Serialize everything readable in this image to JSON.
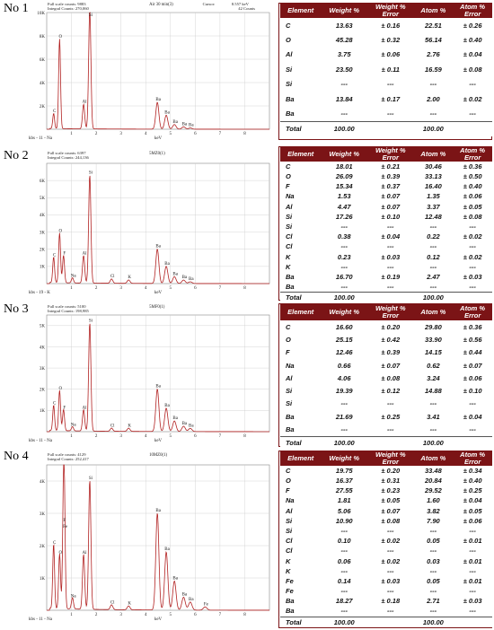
{
  "colors": {
    "header_bg": "#7b1416",
    "spectrum": "#b22222",
    "grid": "#cccccc"
  },
  "headers_full": [
    "Element",
    "Weight %",
    "Weight % Error",
    "Atom %",
    "Atom % Error"
  ],
  "headers_split": {
    "element": "Element",
    "weight": "Weight %",
    "weight_err": "Weight %",
    "weight_err2": "Error",
    "atom": "Atom %",
    "atom_err": "Atom %",
    "atom_err2": "Error"
  },
  "panels": [
    {
      "label": "No 1",
      "info_line1": "Full scale counts: 9883",
      "info_line2": "Integral Counts: 270,060",
      "sample": "Air 30 min(3)",
      "cursor": "Cursor:",
      "cursor_val": "8.557 keV",
      "cursor_counts": "42  Counts",
      "footer": "kbs - 11 - Na",
      "xaxis": "keV",
      "chart_data": {
        "type": "line",
        "ylim": [
          0,
          10000
        ],
        "xlim": [
          0,
          9
        ],
        "yticks": [
          "2K",
          "4K",
          "6K",
          "8K",
          "10K"
        ],
        "xticks": [
          "1",
          "2",
          "3",
          "4",
          "5",
          "6",
          "7",
          "8"
        ],
        "peaks": [
          {
            "label": "C",
            "x": 0.28,
            "y": 1300
          },
          {
            "label": "O",
            "x": 0.52,
            "y": 7700
          },
          {
            "label": "Al",
            "x": 1.49,
            "y": 2100
          },
          {
            "label": "Si",
            "x": 1.74,
            "y": 10300
          },
          {
            "label": "Ba",
            "x": 4.47,
            "y": 2300
          },
          {
            "label": "Ba",
            "x": 4.83,
            "y": 1200
          },
          {
            "label": "Ba",
            "x": 5.16,
            "y": 400
          },
          {
            "label": "Ba",
            "x": 5.53,
            "y": 200
          },
          {
            "label": "Ba",
            "x": 5.8,
            "y": 100
          }
        ]
      },
      "table": {
        "rows": [
          [
            "C",
            "13.63",
            "± 0.16",
            "22.51",
            "± 0.26"
          ],
          [
            "O",
            "45.28",
            "± 0.32",
            "56.14",
            "± 0.40"
          ],
          [
            "Al",
            "3.75",
            "± 0.06",
            "2.76",
            "± 0.04"
          ],
          [
            "Si",
            "23.50",
            "± 0.11",
            "16.59",
            "± 0.08"
          ],
          [
            "Si",
            "---",
            "---",
            "---",
            "---"
          ],
          [
            "Ba",
            "13.84",
            "± 0.17",
            "2.00",
            "± 0.02"
          ],
          [
            "Ba",
            "---",
            "---",
            "---",
            "---"
          ]
        ],
        "total": [
          "Total",
          "100.00",
          "",
          "100.00",
          ""
        ]
      }
    },
    {
      "label": "No 2",
      "info_line1": "Full scale counts: 6397",
      "info_line2": "Integral Counts: 244,136",
      "sample": "5MZ0(1)",
      "footer": "kbs - 19 - K",
      "xaxis": "keV",
      "chart_data": {
        "type": "line",
        "ylim": [
          0,
          7000
        ],
        "xlim": [
          0,
          9
        ],
        "yticks": [
          "1K",
          "2K",
          "3K",
          "4K",
          "5K",
          "6K"
        ],
        "xticks": [
          "1",
          "2",
          "3",
          "4",
          "5",
          "6",
          "7",
          "8"
        ],
        "peaks": [
          {
            "label": "C",
            "x": 0.28,
            "y": 1500
          },
          {
            "label": "O",
            "x": 0.52,
            "y": 2900
          },
          {
            "label": "F",
            "x": 0.68,
            "y": 1600
          },
          {
            "label": "Na",
            "x": 1.04,
            "y": 300
          },
          {
            "label": "Al",
            "x": 1.49,
            "y": 1600
          },
          {
            "label": "Si",
            "x": 1.74,
            "y": 6300
          },
          {
            "label": "Cl",
            "x": 2.62,
            "y": 250
          },
          {
            "label": "K",
            "x": 3.31,
            "y": 200
          },
          {
            "label": "Ba",
            "x": 4.47,
            "y": 2000
          },
          {
            "label": "Ba",
            "x": 4.83,
            "y": 1000
          },
          {
            "label": "Ba",
            "x": 5.16,
            "y": 400
          },
          {
            "label": "Ba",
            "x": 5.53,
            "y": 200
          },
          {
            "label": "Ba",
            "x": 5.8,
            "y": 100
          }
        ]
      },
      "table": {
        "rows": [
          [
            "C",
            "18.01",
            "± 0.21",
            "30.46",
            "± 0.36"
          ],
          [
            "O",
            "26.09",
            "± 0.39",
            "33.13",
            "± 0.50"
          ],
          [
            "F",
            "15.34",
            "± 0.37",
            "16.40",
            "± 0.40"
          ],
          [
            "Na",
            "1.53",
            "± 0.07",
            "1.35",
            "± 0.06"
          ],
          [
            "Al",
            "4.47",
            "± 0.07",
            "3.37",
            "± 0.05"
          ],
          [
            "Si",
            "17.26",
            "± 0.10",
            "12.48",
            "± 0.08"
          ],
          [
            "Si",
            "---",
            "---",
            "---",
            "---"
          ],
          [
            "Cl",
            "0.38",
            "± 0.04",
            "0.22",
            "± 0.02"
          ],
          [
            "Cl",
            "---",
            "---",
            "---",
            "---"
          ],
          [
            "K",
            "0.23",
            "± 0.03",
            "0.12",
            "± 0.02"
          ],
          [
            "K",
            "---",
            "---",
            "---",
            "---"
          ],
          [
            "Ba",
            "16.70",
            "± 0.19",
            "2.47",
            "± 0.03"
          ],
          [
            "Ba",
            "---",
            "---",
            "---",
            "---"
          ]
        ],
        "total": [
          "Total",
          "100.00",
          "",
          "100.00",
          ""
        ]
      }
    },
    {
      "label": "No 3",
      "info_line1": "Full scale counts: 5100",
      "info_line2": "Integral Counts: 198,985",
      "sample": "5MF0(1)",
      "footer": "kbs - 11 - Na",
      "xaxis": "keV",
      "chart_data": {
        "type": "line",
        "ylim": [
          0,
          5500
        ],
        "xlim": [
          0,
          9
        ],
        "yticks": [
          "1K",
          "2K",
          "3K",
          "4K",
          "5K"
        ],
        "xticks": [
          "1",
          "2",
          "3",
          "4",
          "5",
          "6",
          "7",
          "8"
        ],
        "peaks": [
          {
            "label": "C",
            "x": 0.28,
            "y": 1200
          },
          {
            "label": "O",
            "x": 0.52,
            "y": 1900
          },
          {
            "label": "F",
            "x": 0.68,
            "y": 1000
          },
          {
            "label": "Na",
            "x": 1.04,
            "y": 200
          },
          {
            "label": "Al",
            "x": 1.49,
            "y": 1000
          },
          {
            "label": "Si",
            "x": 1.74,
            "y": 5100
          },
          {
            "label": "Cl",
            "x": 2.62,
            "y": 150
          },
          {
            "label": "K",
            "x": 3.31,
            "y": 150
          },
          {
            "label": "Ba",
            "x": 4.47,
            "y": 2000
          },
          {
            "label": "Ba",
            "x": 4.83,
            "y": 1100
          },
          {
            "label": "Ba",
            "x": 5.16,
            "y": 500
          },
          {
            "label": "Ba",
            "x": 5.53,
            "y": 250
          },
          {
            "label": "Ba",
            "x": 5.8,
            "y": 150
          }
        ]
      },
      "table": {
        "rows": [
          [
            "C",
            "16.60",
            "± 0.20",
            "29.80",
            "± 0.36"
          ],
          [
            "O",
            "25.15",
            "± 0.42",
            "33.90",
            "± 0.56"
          ],
          [
            "F",
            "12.46",
            "± 0.39",
            "14.15",
            "± 0.44"
          ],
          [
            "Na",
            "0.66",
            "± 0.07",
            "0.62",
            "± 0.07"
          ],
          [
            "Al",
            "4.06",
            "± 0.08",
            "3.24",
            "± 0.06"
          ],
          [
            "Si",
            "19.39",
            "± 0.12",
            "14.88",
            "± 0.10"
          ],
          [
            "Si",
            "---",
            "---",
            "---",
            "---"
          ],
          [
            "Ba",
            "21.69",
            "± 0.25",
            "3.41",
            "± 0.04"
          ],
          [
            "Ba",
            "---",
            "---",
            "---",
            "---"
          ]
        ],
        "total": [
          "Total",
          "100.00",
          "",
          "100.00",
          ""
        ]
      }
    },
    {
      "label": "No 4",
      "info_line1": "Full scale counts: 4129",
      "info_line2": "Integral Counts: 252,417",
      "sample": "10MZ0(1)",
      "footer": "kbs - 11 - Na",
      "xaxis": "keV",
      "chart_data": {
        "type": "line",
        "ylim": [
          0,
          4500
        ],
        "xlim": [
          0,
          9
        ],
        "yticks": [
          "1K",
          "2K",
          "3K",
          "4K"
        ],
        "xticks": [
          "1",
          "2",
          "3",
          "4",
          "5",
          "6",
          "7",
          "8"
        ],
        "peaks": [
          {
            "label": "C",
            "x": 0.28,
            "y": 2000
          },
          {
            "label": "O",
            "x": 0.52,
            "y": 1700
          },
          {
            "label": "F",
            "x": 0.68,
            "y": 2700
          },
          {
            "label": "Fe",
            "x": 0.71,
            "y": 2500
          },
          {
            "label": "Na",
            "x": 1.04,
            "y": 350
          },
          {
            "label": "Al",
            "x": 1.49,
            "y": 1700
          },
          {
            "label": "Si",
            "x": 1.74,
            "y": 4000
          },
          {
            "label": "Cl",
            "x": 2.62,
            "y": 150
          },
          {
            "label": "K",
            "x": 3.31,
            "y": 120
          },
          {
            "label": "Ba",
            "x": 4.47,
            "y": 3000
          },
          {
            "label": "Ba",
            "x": 4.83,
            "y": 1800
          },
          {
            "label": "Ba",
            "x": 5.16,
            "y": 900
          },
          {
            "label": "Ba",
            "x": 5.53,
            "y": 400
          },
          {
            "label": "Ba",
            "x": 5.8,
            "y": 250
          },
          {
            "label": "Fe",
            "x": 6.4,
            "y": 100
          }
        ]
      },
      "table": {
        "rows": [
          [
            "C",
            "19.75",
            "± 0.20",
            "33.48",
            "± 0.34"
          ],
          [
            "O",
            "16.37",
            "± 0.31",
            "20.84",
            "± 0.40"
          ],
          [
            "F",
            "27.55",
            "± 0.23",
            "29.52",
            "± 0.25"
          ],
          [
            "Na",
            "1.81",
            "± 0.05",
            "1.60",
            "± 0.04"
          ],
          [
            "Al",
            "5.06",
            "± 0.07",
            "3.82",
            "± 0.05"
          ],
          [
            "Si",
            "10.90",
            "± 0.08",
            "7.90",
            "± 0.06"
          ],
          [
            "Si",
            "---",
            "---",
            "---",
            "---"
          ],
          [
            "Cl",
            "0.10",
            "± 0.02",
            "0.05",
            "± 0.01"
          ],
          [
            "Cl",
            "---",
            "---",
            "---",
            "---"
          ],
          [
            "K",
            "0.06",
            "± 0.02",
            "0.03",
            "± 0.01"
          ],
          [
            "K",
            "---",
            "---",
            "---",
            "---"
          ],
          [
            "Fe",
            "0.14",
            "± 0.03",
            "0.05",
            "± 0.01"
          ],
          [
            "Fe",
            "---",
            "---",
            "---",
            "---"
          ],
          [
            "Ba",
            "18.27",
            "± 0.18",
            "2.71",
            "± 0.03"
          ],
          [
            "Ba",
            "---",
            "---",
            "---",
            "---"
          ]
        ],
        "total": [
          "Total",
          "100.00",
          "",
          "100.00",
          ""
        ]
      }
    }
  ]
}
